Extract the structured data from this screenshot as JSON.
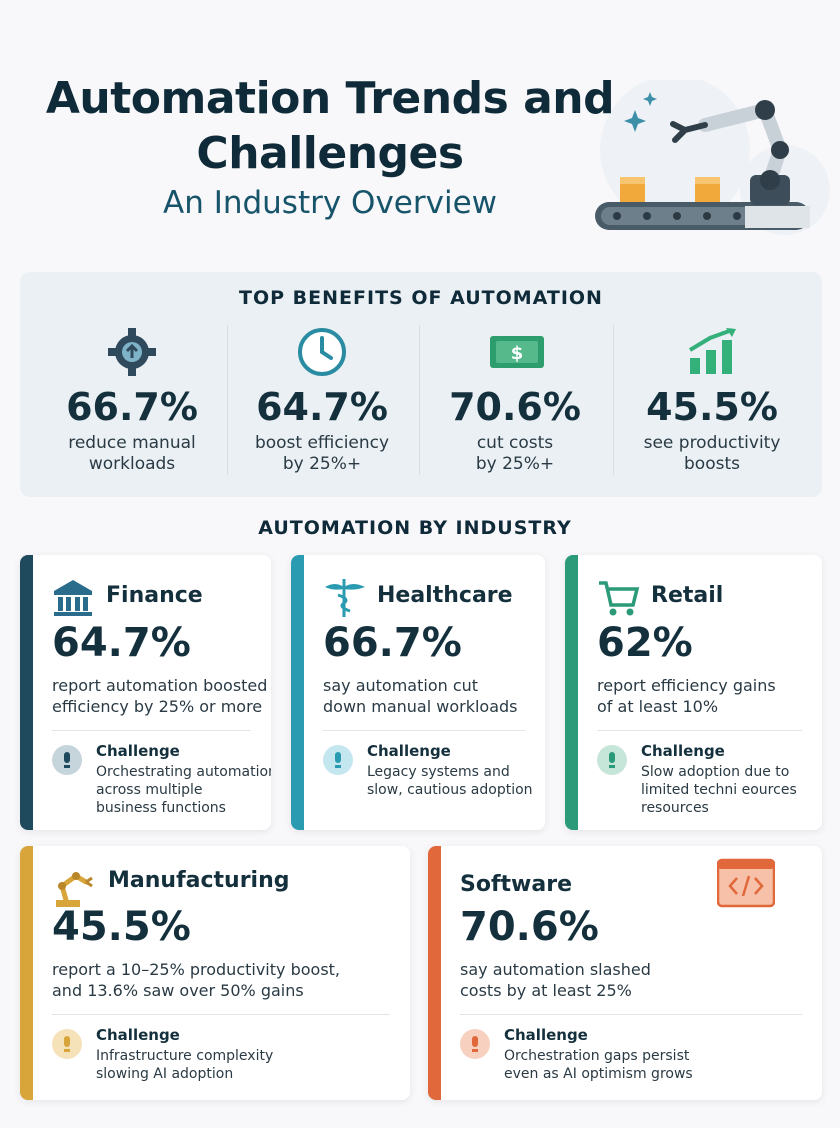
{
  "header": {
    "title_lines": [
      "Automation Trends and",
      "Challenges"
    ],
    "subtitle": "An Industry Overview"
  },
  "benefits": {
    "heading": "TOP BENEFITS OF AUTOMATION",
    "items": [
      {
        "value": "66.7%",
        "label_lines": [
          "reduce manual",
          "workloads"
        ]
      },
      {
        "value": "64.7%",
        "label_lines": [
          "boost efficiency",
          "by 25%+"
        ]
      },
      {
        "value": "70.6%",
        "label_lines": [
          "cut costs",
          "by 25%+"
        ]
      },
      {
        "value": "45.5%",
        "label_lines": [
          "see productivity",
          "boosts"
        ]
      }
    ]
  },
  "industry": {
    "heading": "AUTOMATION BY INDUSTRY",
    "cards": [
      {
        "name": "Finance",
        "value": "64.7%",
        "desc_lines": [
          "report automation boosted",
          "efficiency by 25% or more"
        ],
        "challenge_label": "Challenge",
        "challenge_lines": [
          "Orchestrating automation",
          "across multiple",
          "business functions"
        ]
      },
      {
        "name": "Healthcare",
        "value": "66.7%",
        "desc_lines": [
          "say automation cut",
          "down manual workloads"
        ],
        "challenge_label": "Challenge",
        "challenge_lines": [
          "Legacy systems and",
          "slow, cautious adoption"
        ]
      },
      {
        "name": "Retail",
        "value": "62%",
        "desc_lines": [
          "report efficiency gains",
          "of at least 10%"
        ],
        "challenge_label": "Challenge",
        "challenge_lines": [
          "Slow adoption due to",
          "limited techni eources",
          "resources"
        ]
      },
      {
        "name": "Manufacturing",
        "value": "45.5%",
        "desc_lines": [
          "report a 10–25% productivity boost,",
          "and 13.6% saw over 50% gains"
        ],
        "challenge_label": "Challenge",
        "challenge_lines": [
          "Infrastructure complexity",
          "slowing AI adoption"
        ]
      },
      {
        "name": "Software",
        "value": "70.6%",
        "desc_lines": [
          "say automation slashed",
          "costs by at least 25%"
        ],
        "challenge_label": "Challenge",
        "challenge_lines": [
          "Orchestration gaps persist",
          "even as AI optimism grows"
        ]
      }
    ]
  }
}
